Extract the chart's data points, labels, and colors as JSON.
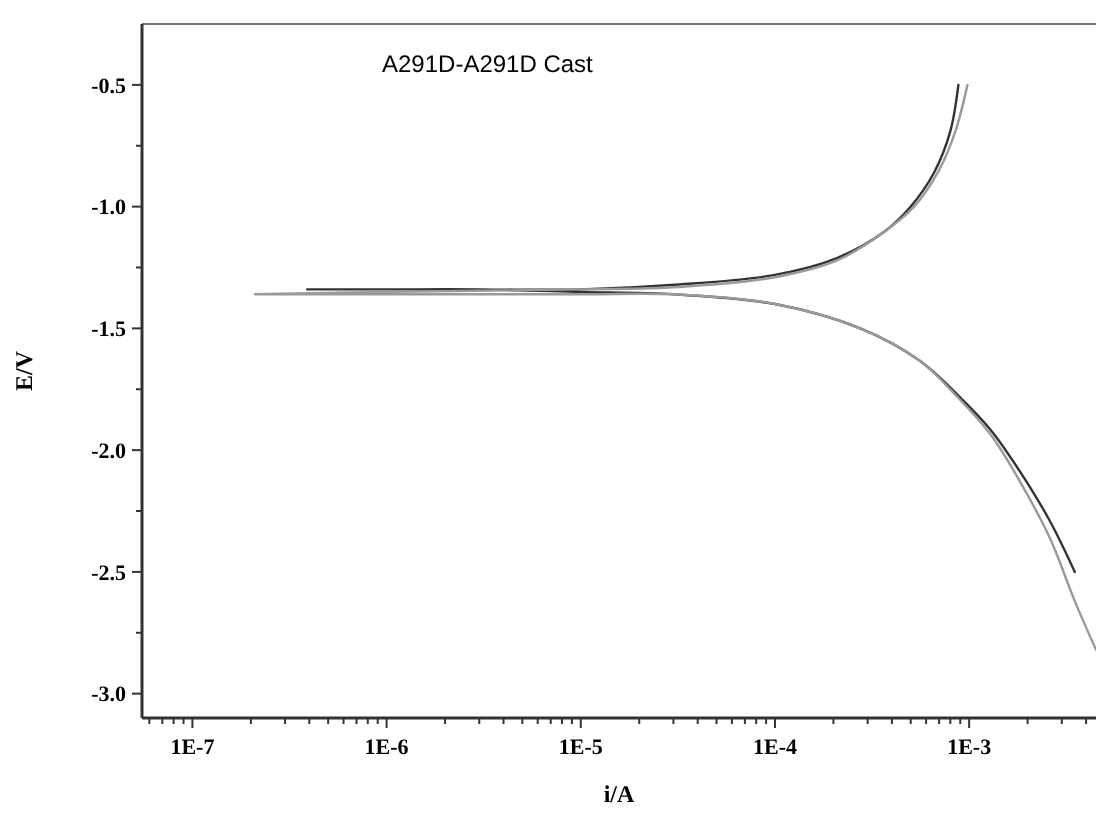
{
  "chart_data": {
    "type": "line",
    "title": "A291D-A291D Cast",
    "xlabel": "i/A",
    "ylabel": "E/V",
    "log": "x",
    "grid": false,
    "marker": "none",
    "line_style": "solid",
    "xlim": [
      5.5e-08,
      0.0045
    ],
    "ylim": [
      -3.1,
      -0.25
    ],
    "xticks": [
      {
        "value": 6e-08,
        "label": null
      },
      {
        "value": 7e-08,
        "label": null
      },
      {
        "value": 8e-08,
        "label": null
      },
      {
        "value": 9e-08,
        "label": null
      },
      {
        "value": 1e-07,
        "label": "1E-7"
      },
      {
        "value": 2e-07,
        "label": null
      },
      {
        "value": 3e-07,
        "label": null
      },
      {
        "value": 4e-07,
        "label": null
      },
      {
        "value": 5e-07,
        "label": null
      },
      {
        "value": 6e-07,
        "label": null
      },
      {
        "value": 7e-07,
        "label": null
      },
      {
        "value": 8e-07,
        "label": null
      },
      {
        "value": 9e-07,
        "label": null
      },
      {
        "value": 1e-06,
        "label": "1E-6"
      },
      {
        "value": 2e-06,
        "label": null
      },
      {
        "value": 3e-06,
        "label": null
      },
      {
        "value": 4e-06,
        "label": null
      },
      {
        "value": 5e-06,
        "label": null
      },
      {
        "value": 6e-06,
        "label": null
      },
      {
        "value": 7e-06,
        "label": null
      },
      {
        "value": 8e-06,
        "label": null
      },
      {
        "value": 9e-06,
        "label": null
      },
      {
        "value": 1e-05,
        "label": "1E-5"
      },
      {
        "value": 2e-05,
        "label": null
      },
      {
        "value": 3e-05,
        "label": null
      },
      {
        "value": 4e-05,
        "label": null
      },
      {
        "value": 5e-05,
        "label": null
      },
      {
        "value": 6e-05,
        "label": null
      },
      {
        "value": 7e-05,
        "label": null
      },
      {
        "value": 8e-05,
        "label": null
      },
      {
        "value": 9e-05,
        "label": null
      },
      {
        "value": 0.0001,
        "label": "1E-4"
      },
      {
        "value": 0.0002,
        "label": null
      },
      {
        "value": 0.0003,
        "label": null
      },
      {
        "value": 0.0004,
        "label": null
      },
      {
        "value": 0.0005,
        "label": null
      },
      {
        "value": 0.0006,
        "label": null
      },
      {
        "value": 0.0007,
        "label": null
      },
      {
        "value": 0.0008,
        "label": null
      },
      {
        "value": 0.0009,
        "label": null
      },
      {
        "value": 0.001,
        "label": "1E-3"
      },
      {
        "value": 0.002,
        "label": null
      },
      {
        "value": 0.003,
        "label": null
      },
      {
        "value": 0.004,
        "label": null
      }
    ],
    "yticks": [
      {
        "value": -3.0,
        "label": "-3.0"
      },
      {
        "value": -2.75,
        "label": null
      },
      {
        "value": -2.5,
        "label": "-2.5"
      },
      {
        "value": -2.25,
        "label": null
      },
      {
        "value": -2.0,
        "label": "-2.0"
      },
      {
        "value": -1.75,
        "label": null
      },
      {
        "value": -1.5,
        "label": "-1.5"
      },
      {
        "value": -1.25,
        "label": null
      },
      {
        "value": -1.0,
        "label": "-1.0"
      },
      {
        "value": -0.75,
        "label": null
      },
      {
        "value": -0.5,
        "label": "-0.5"
      }
    ],
    "series": [
      {
        "color": "#333333",
        "x": [
          0.0035,
          0.0026,
          0.0018,
          0.0013,
          0.00089,
          0.00055,
          0.000275,
          0.0001,
          3e-05,
          1e-05,
          3e-06,
          1e-06,
          3.9e-07,
          1e-06,
          3e-06,
          1e-05,
          3.2e-05,
          0.0001,
          0.00021,
          0.00037,
          0.0005,
          0.00066,
          0.0008,
          0.00088
        ],
        "values": [
          -2.5,
          -2.29,
          -2.08,
          -1.92,
          -1.78,
          -1.63,
          -1.5,
          -1.4,
          -1.36,
          -1.35,
          -1.34,
          -1.34,
          -1.34,
          -1.34,
          -1.34,
          -1.34,
          -1.32,
          -1.28,
          -1.21,
          -1.1,
          -1.0,
          -0.86,
          -0.69,
          -0.5
        ]
      },
      {
        "color": "#9a9a9a",
        "x": [
          0.0045,
          0.0035,
          0.0026,
          0.0018,
          0.0013,
          0.00089,
          0.00055,
          0.000275,
          0.0001,
          3e-05,
          1e-05,
          1e-06,
          2.1e-07,
          1e-06,
          1e-05,
          3.2e-05,
          0.0001,
          0.00021,
          0.00037,
          0.00052,
          0.0007,
          0.00085,
          0.00098
        ],
        "values": [
          -2.82,
          -2.62,
          -2.36,
          -2.12,
          -1.94,
          -1.79,
          -1.63,
          -1.5,
          -1.4,
          -1.36,
          -1.36,
          -1.36,
          -1.36,
          -1.35,
          -1.34,
          -1.33,
          -1.29,
          -1.22,
          -1.1,
          -1.0,
          -0.85,
          -0.69,
          -0.5
        ]
      }
    ]
  }
}
